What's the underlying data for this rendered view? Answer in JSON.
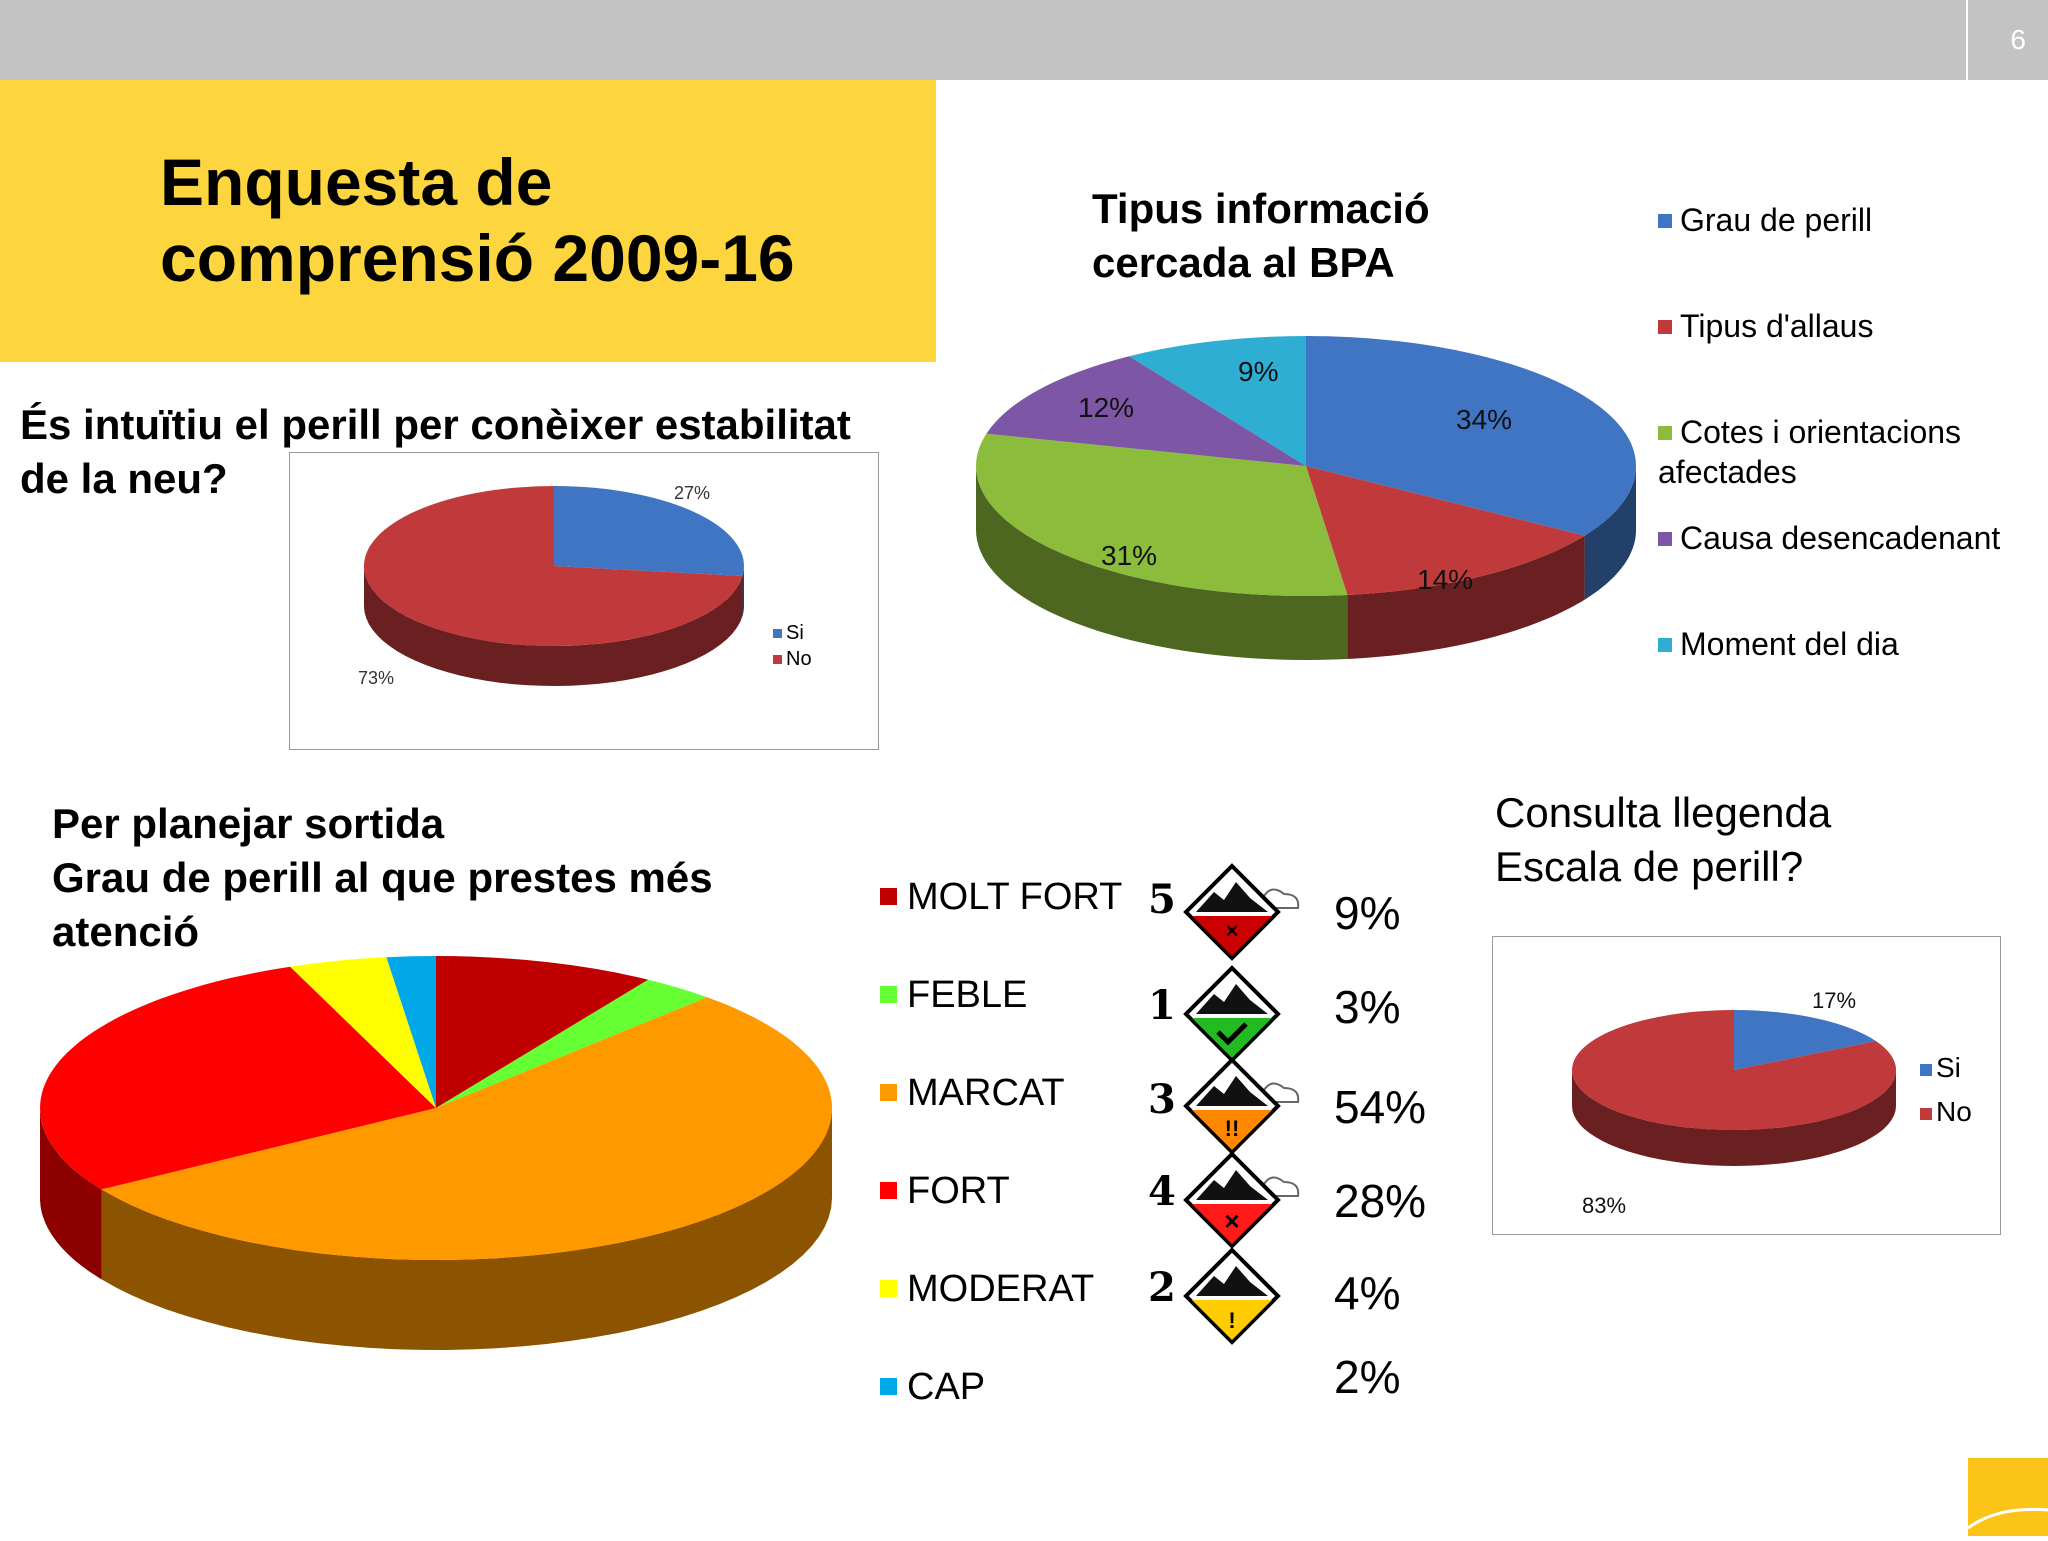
{
  "slide_number": "6",
  "title_line1": "Enquesta de",
  "title_line2": "comprensió 2009-16",
  "colors": {
    "blue": "#3f75c2",
    "red": "#c0393b",
    "green": "#8cbc3c",
    "purple": "#7d57a5",
    "cyan": "#2eaed3",
    "molt_fort": "#c00000",
    "feble": "#66ff33",
    "marcat": "#ff9900",
    "fort": "#ff0000",
    "moderat": "#ffff00",
    "cap": "#00a8e8"
  },
  "q1": {
    "line1": "És intuïtiu el perill per conèixer estabilitat",
    "line2": "de la neu?"
  },
  "q2": {
    "line1": "Tipus informació",
    "line2": "cercada al BPA"
  },
  "q3": {
    "line1": "Per planejar sortida",
    "line2": "Grau de perill al que prestes més",
    "line3": "atenció"
  },
  "q4": {
    "line1": "Consulta llegenda",
    "line2": "Escala de perill?"
  },
  "chart_data": [
    {
      "type": "pie",
      "labels": [
        "Si",
        "No"
      ],
      "values": [
        27,
        73
      ],
      "data_labels": [
        "27%",
        "73%"
      ],
      "legend": [
        "Si",
        "No"
      ]
    },
    {
      "type": "pie",
      "labels": [
        "Grau de perill",
        "Tipus d'allaus",
        "Cotes i orientacions afectades",
        "Causa desencadenant",
        "Moment del dia"
      ],
      "values": [
        34,
        14,
        31,
        12,
        9
      ],
      "data_labels": [
        "34%",
        "14%",
        "31%",
        "12%",
        "9%"
      ],
      "legend": [
        "Grau de perill",
        "Tipus d'allaus",
        "Cotes i orientacions afectades",
        "Causa desencadenant",
        "Moment del dia"
      ],
      "legend_placement": "right"
    },
    {
      "type": "pie",
      "labels": [
        "MOLT FORT",
        "FEBLE",
        "MARCAT",
        "FORT",
        "MODERAT",
        "CAP"
      ],
      "values": [
        9,
        3,
        54,
        28,
        4,
        2
      ],
      "data_labels": [
        "9%",
        "3%",
        "54%",
        "28%",
        "4%",
        "2%"
      ],
      "danger_levels": [
        "5",
        "1",
        "3",
        "4",
        "2",
        ""
      ],
      "legend": [
        "MOLT FORT",
        "FEBLE",
        "MARCAT",
        "FORT",
        "MODERAT",
        "CAP"
      ],
      "legend_placement": "right"
    },
    {
      "type": "pie",
      "labels": [
        "Si",
        "No"
      ],
      "values": [
        17,
        83
      ],
      "data_labels": [
        "17%",
        "83%"
      ],
      "legend": [
        "Si",
        "No"
      ]
    }
  ]
}
